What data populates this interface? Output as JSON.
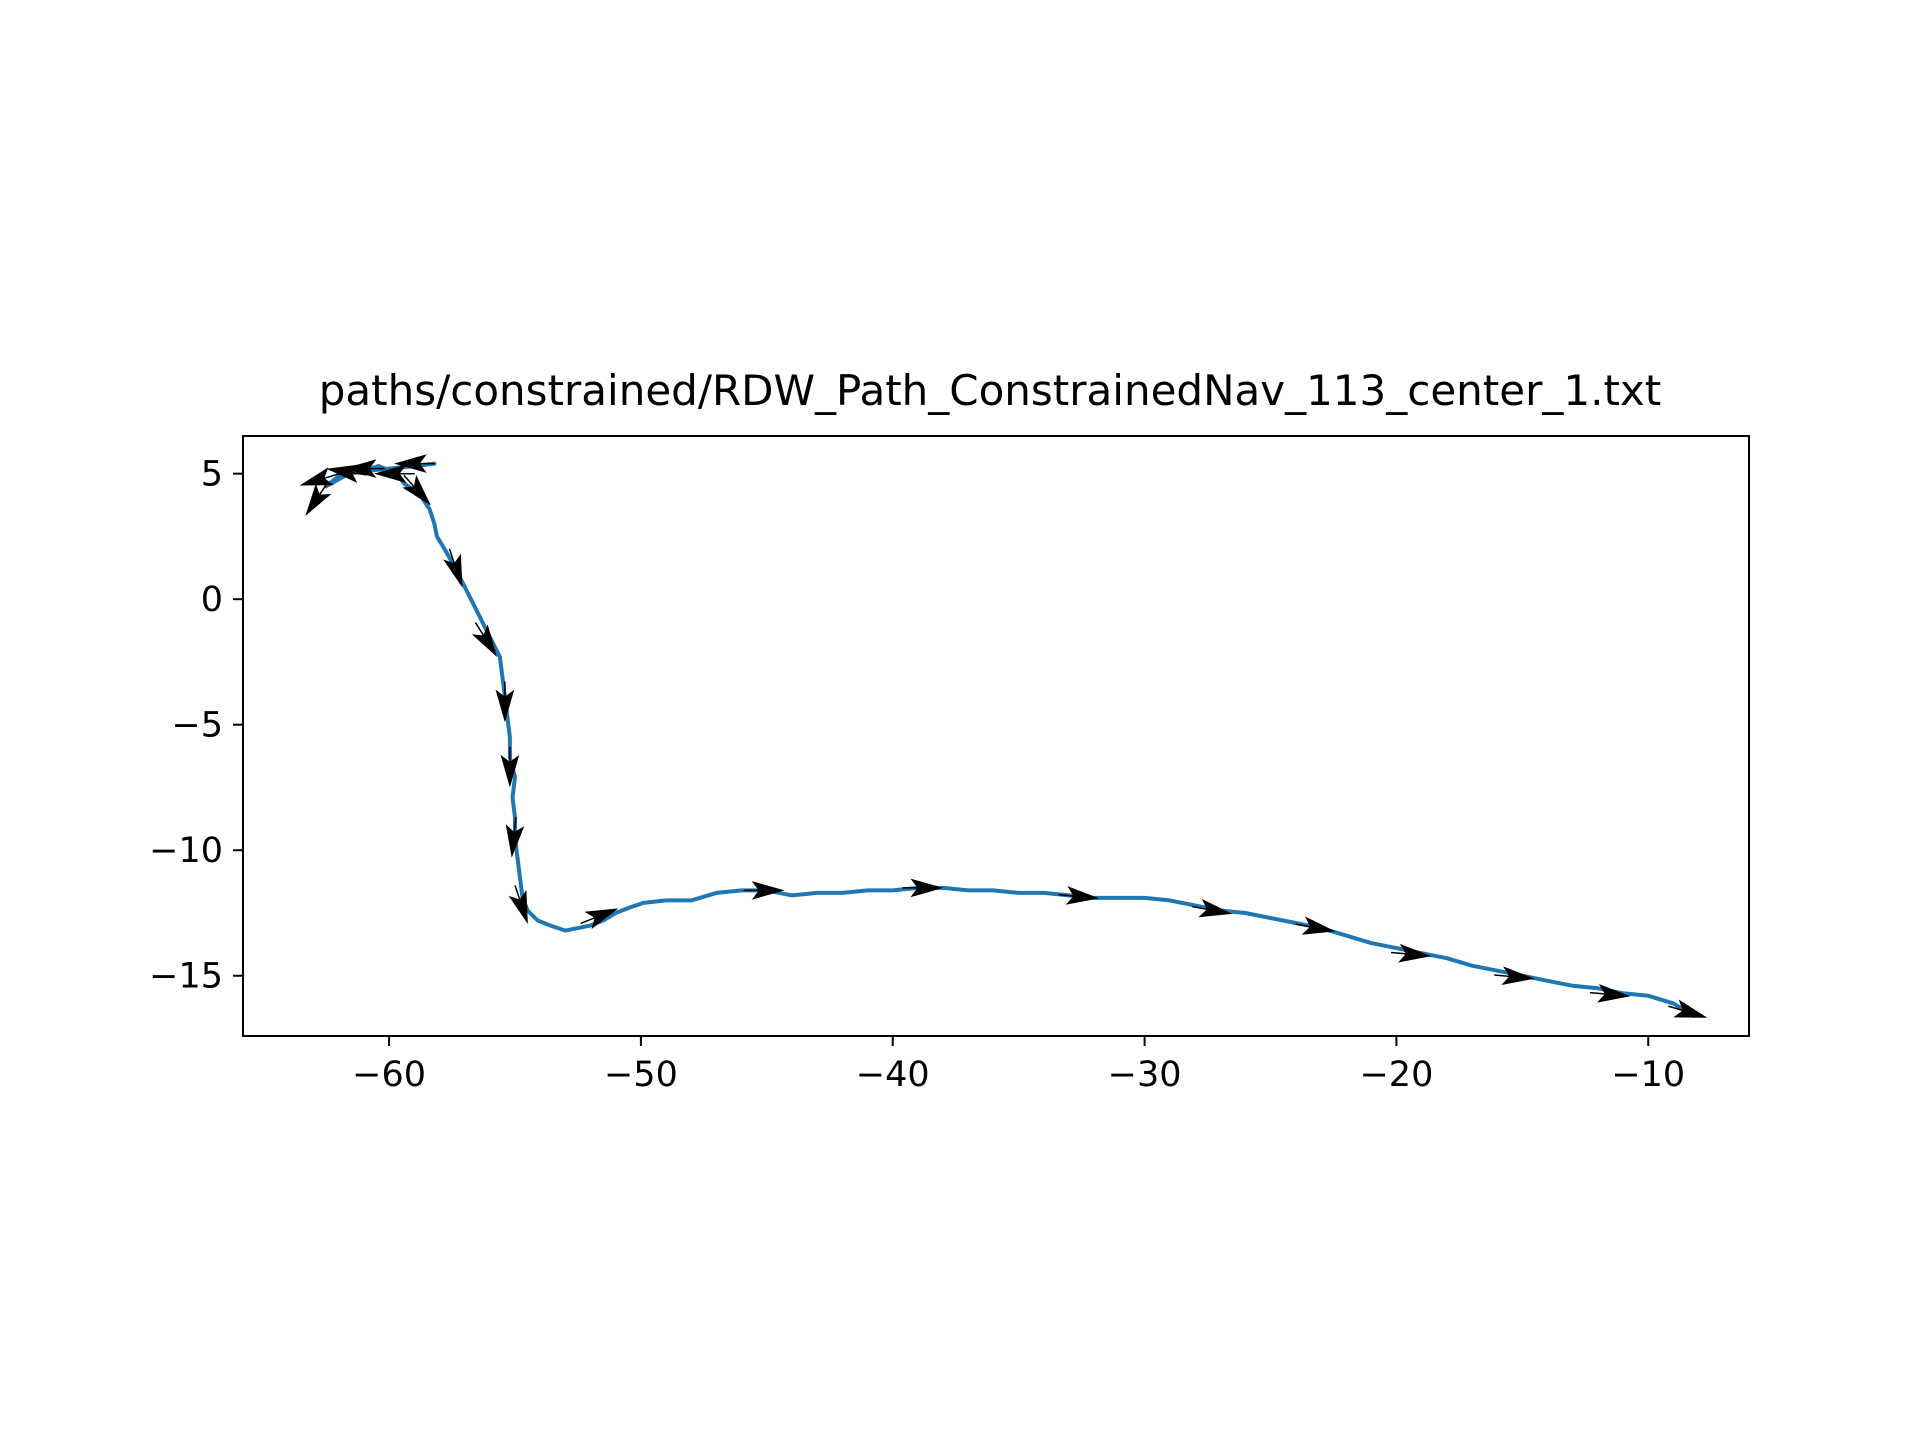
{
  "chart_data": {
    "type": "line",
    "title": "paths/constrained/RDW_Path_ConstrainedNav_113_center_1.txt",
    "xlabel": "",
    "ylabel": "",
    "xlim": [
      -65.8,
      -6.0
    ],
    "ylim": [
      -17.4,
      6.5
    ],
    "x_ticks": [
      -60,
      -50,
      -40,
      -30,
      -20,
      -10
    ],
    "y_ticks": [
      5,
      0,
      -5,
      -10,
      -15
    ],
    "x_tick_labels": [
      "−60",
      "−50",
      "−40",
      "−30",
      "−20",
      "−10"
    ],
    "y_tick_labels": [
      "5",
      "0",
      "−5",
      "−10",
      "−15"
    ],
    "grid": false,
    "line_color": "#1f77b4",
    "arrow_color": "#000000",
    "series": [
      {
        "x": [
          -58.2,
          -59.0,
          -60.0,
          -61.0,
          -62.0,
          -62.5,
          -61.6,
          -60.4,
          -59.7,
          -59.4,
          -58.8,
          -58.4,
          -58.2,
          -58.1,
          -57.8,
          -57.4,
          -57.0,
          -56.6,
          -56.2,
          -55.9,
          -55.6,
          -55.5,
          -55.4,
          -55.3,
          -55.2,
          -55.2,
          -55.0,
          -55.1,
          -55.0,
          -55.0,
          -54.9,
          -54.8,
          -54.7,
          -54.5,
          -54.1,
          -53.6,
          -53.0,
          -52.5,
          -52.0,
          -51.5,
          -51.0,
          -50.5,
          -49.9,
          -49.0,
          -48.0,
          -47.0,
          -46.0,
          -45.0,
          -44.0,
          -43.0,
          -42.0,
          -41.0,
          -40.0,
          -39.0,
          -38.0,
          -37.0,
          -36.0,
          -35.0,
          -34.0,
          -33.0,
          -32.0,
          -31.0,
          -30.0,
          -29.0,
          -28.0,
          -27.0,
          -26.0,
          -25.0,
          -24.0,
          -23.0,
          -22.0,
          -21.0,
          -20.0,
          -19.0,
          -18.0,
          -17.0,
          -16.0,
          -15.0,
          -14.0,
          -13.0,
          -12.0,
          -11.0,
          -10.0,
          -9.0,
          -8.2
        ],
        "y": [
          5.4,
          5.3,
          5.2,
          5.1,
          4.9,
          4.5,
          5.0,
          5.3,
          5.0,
          4.6,
          4.2,
          3.6,
          3.0,
          2.5,
          2.0,
          1.3,
          0.5,
          -0.3,
          -1.1,
          -1.7,
          -2.3,
          -3.1,
          -3.9,
          -4.7,
          -5.5,
          -6.3,
          -7.1,
          -7.9,
          -8.7,
          -9.5,
          -10.3,
          -11.1,
          -11.9,
          -12.4,
          -12.8,
          -13.0,
          -13.2,
          -13.1,
          -13.0,
          -12.8,
          -12.5,
          -12.3,
          -12.1,
          -12.0,
          -12.0,
          -11.7,
          -11.6,
          -11.6,
          -11.8,
          -11.7,
          -11.7,
          -11.6,
          -11.6,
          -11.5,
          -11.5,
          -11.6,
          -11.6,
          -11.7,
          -11.7,
          -11.8,
          -11.9,
          -11.9,
          -11.9,
          -12.0,
          -12.2,
          -12.4,
          -12.5,
          -12.7,
          -12.9,
          -13.1,
          -13.4,
          -13.7,
          -13.9,
          -14.1,
          -14.3,
          -14.6,
          -14.8,
          -15.0,
          -15.2,
          -15.4,
          -15.5,
          -15.7,
          -15.8,
          -16.1,
          -16.6
        ]
      }
    ],
    "arrows": [
      {
        "x": -58.5,
        "y": 5.4,
        "dx": -0.9,
        "dy": 0.0
      },
      {
        "x": -59.3,
        "y": 5.0,
        "dx": -1.3,
        "dy": 0.0
      },
      {
        "x": -60.5,
        "y": 5.2,
        "dx": -1.2,
        "dy": 0.0
      },
      {
        "x": -61.2,
        "y": 5.0,
        "dx": -1.3,
        "dy": 0.2
      },
      {
        "x": -62.3,
        "y": 4.9,
        "dx": -1.0,
        "dy": -0.3
      },
      {
        "x": -62.6,
        "y": 4.4,
        "dx": -0.6,
        "dy": -0.9
      },
      {
        "x": -59.2,
        "y": 4.7,
        "dx": 0.8,
        "dy": -0.9
      },
      {
        "x": -57.5,
        "y": 1.7,
        "dx": 0.3,
        "dy": -0.9
      },
      {
        "x": -56.4,
        "y": -1.2,
        "dx": 0.5,
        "dy": -0.8
      },
      {
        "x": -55.4,
        "y": -3.6,
        "dx": 0.0,
        "dy": -1.0
      },
      {
        "x": -55.2,
        "y": -6.2,
        "dx": 0.0,
        "dy": -1.0
      },
      {
        "x": -55.0,
        "y": -9.0,
        "dx": -0.1,
        "dy": -1.0
      },
      {
        "x": -54.9,
        "y": -11.7,
        "dx": 0.3,
        "dy": -0.9
      },
      {
        "x": -52.1,
        "y": -12.8,
        "dx": 1.0,
        "dy": 0.4
      },
      {
        "x": -45.6,
        "y": -11.6,
        "dx": 1.0,
        "dy": 0.0
      },
      {
        "x": -39.3,
        "y": -11.5,
        "dx": 1.0,
        "dy": 0.0
      },
      {
        "x": -33.1,
        "y": -11.8,
        "dx": 1.1,
        "dy": -0.1
      },
      {
        "x": -27.8,
        "y": -12.3,
        "dx": 1.1,
        "dy": -0.2
      },
      {
        "x": -23.7,
        "y": -13.0,
        "dx": 1.1,
        "dy": -0.2
      },
      {
        "x": -19.9,
        "y": -14.1,
        "dx": 1.1,
        "dy": -0.1
      },
      {
        "x": -15.8,
        "y": -15.0,
        "dx": 1.1,
        "dy": -0.1
      },
      {
        "x": -12.0,
        "y": -15.7,
        "dx": 1.1,
        "dy": -0.1
      },
      {
        "x": -8.9,
        "y": -16.3,
        "dx": 1.0,
        "dy": -0.3
      }
    ]
  }
}
